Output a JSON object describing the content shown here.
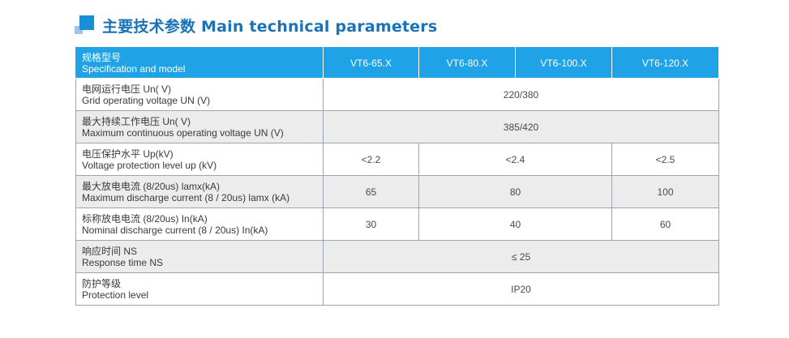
{
  "heading": {
    "title": "主要技术参数 Main technical parameters"
  },
  "header_row": {
    "label_zh": "规格型号",
    "label_en": "Specification and model",
    "models": [
      "VT6-65.X",
      "VT6-80.X",
      "VT6-100.X",
      "VT6-120.X"
    ]
  },
  "rows": [
    {
      "label_zh": "电网运行电压 Un( V)",
      "label_en": "Grid operating voltage UN (V)",
      "values": [
        "220/380"
      ]
    },
    {
      "label_zh": "最大持续工作电压 Un( V)",
      "label_en": "Maximum continuous operating voltage UN (V)",
      "values": [
        "385/420"
      ]
    },
    {
      "label_zh": "电压保护水平 Up(kV)",
      "label_en": "Voltage protection level up (kV)",
      "values": [
        "<2.2",
        "<2.4",
        "<2.5"
      ]
    },
    {
      "label_zh": "最大放电电流 (8/20us) lamx(kA)",
      "label_en": "Maximum discharge current (8 / 20us) lamx (kA)",
      "values": [
        "65",
        "80",
        "100"
      ]
    },
    {
      "label_zh": "标称放电电流 (8/20us) In(kA)",
      "label_en": " Nominal discharge current (8 / 20us) In(kA)",
      "values": [
        "30",
        "40",
        "60"
      ]
    },
    {
      "label_zh": "响应时间 NS",
      "label_en": "Response time NS",
      "values": [
        "≤ 25"
      ]
    },
    {
      "label_zh": "防护等级",
      "label_en": " Protection level",
      "values": [
        "IP20"
      ]
    }
  ]
}
